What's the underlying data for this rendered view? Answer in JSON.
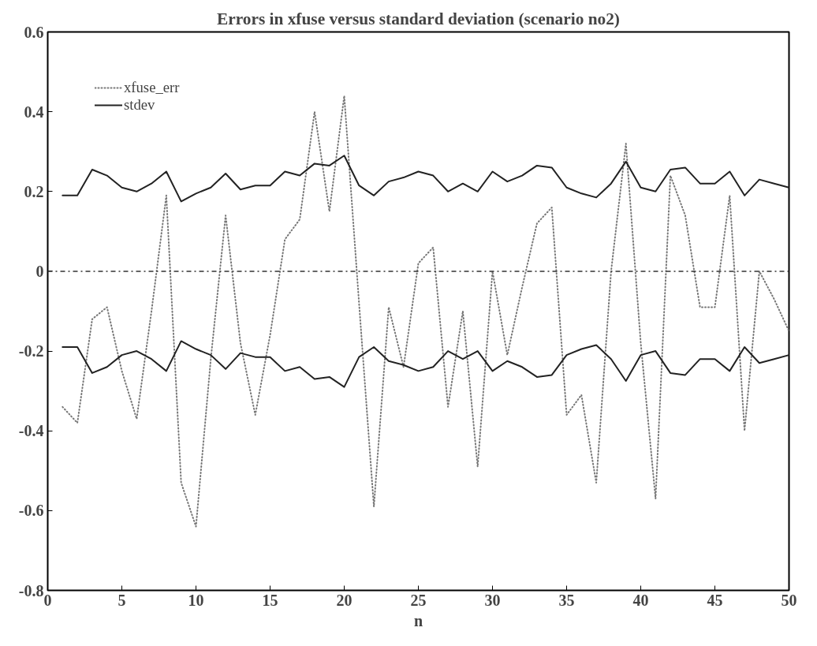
{
  "chart_data": {
    "type": "line",
    "title": "Errors in xfuse versus standard deviation (scenario no2)",
    "xlabel": "n",
    "x": [
      1,
      2,
      3,
      4,
      5,
      6,
      7,
      8,
      9,
      10,
      11,
      12,
      13,
      14,
      15,
      16,
      17,
      18,
      19,
      20,
      21,
      22,
      23,
      24,
      25,
      26,
      27,
      28,
      29,
      30,
      31,
      32,
      33,
      34,
      35,
      36,
      37,
      38,
      39,
      40,
      41,
      42,
      43,
      44,
      45,
      46,
      47,
      48,
      49,
      50
    ],
    "series": [
      {
        "name": "xfuse_err",
        "color": "#777777",
        "line_style": "dotted",
        "values": [
          -0.34,
          -0.38,
          -0.12,
          -0.09,
          -0.25,
          -0.37,
          -0.1,
          0.19,
          -0.53,
          -0.64,
          -0.22,
          0.14,
          -0.18,
          -0.36,
          -0.16,
          0.08,
          0.13,
          0.4,
          0.15,
          0.44,
          -0.08,
          -0.59,
          -0.09,
          -0.24,
          0.02,
          0.06,
          -0.34,
          -0.1,
          -0.49,
          0.0,
          -0.21,
          -0.04,
          0.12,
          0.16,
          -0.36,
          -0.31,
          -0.53,
          0.0,
          0.32,
          -0.18,
          -0.57,
          0.24,
          0.14,
          -0.09,
          -0.09,
          0.19,
          -0.4,
          0.0,
          -0.07,
          -0.15
        ]
      },
      {
        "name": "stdev",
        "color": "#222222",
        "line_style": "solid",
        "values": [
          0.19,
          0.19,
          0.255,
          0.24,
          0.21,
          0.2,
          0.22,
          0.25,
          0.175,
          0.195,
          0.21,
          0.245,
          0.205,
          0.215,
          0.215,
          0.25,
          0.24,
          0.27,
          0.265,
          0.29,
          0.215,
          0.19,
          0.225,
          0.235,
          0.25,
          0.24,
          0.2,
          0.22,
          0.2,
          0.25,
          0.225,
          0.24,
          0.265,
          0.26,
          0.21,
          0.195,
          0.185,
          0.22,
          0.275,
          0.21,
          0.2,
          0.255,
          0.26,
          0.22,
          0.22,
          0.25,
          0.19,
          0.23,
          0.22,
          0.21
        ]
      },
      {
        "color": "#222222",
        "line_style": "solid",
        "values": [
          -0.19,
          -0.19,
          -0.255,
          -0.24,
          -0.21,
          -0.2,
          -0.22,
          -0.25,
          -0.175,
          -0.195,
          -0.21,
          -0.245,
          -0.205,
          -0.215,
          -0.215,
          -0.25,
          -0.24,
          -0.27,
          -0.265,
          -0.29,
          -0.215,
          -0.19,
          -0.225,
          -0.235,
          -0.25,
          -0.24,
          -0.2,
          -0.22,
          -0.2,
          -0.25,
          -0.225,
          -0.24,
          -0.265,
          -0.26,
          -0.21,
          -0.195,
          -0.185,
          -0.22,
          -0.275,
          -0.21,
          -0.2,
          -0.255,
          -0.26,
          -0.22,
          -0.22,
          -0.25,
          -0.19,
          -0.23,
          -0.22,
          -0.21
        ]
      }
    ],
    "ref_lines": [
      {
        "axis": "y",
        "value": 0,
        "color": "#333333",
        "line_style": "dashdot"
      }
    ],
    "xlim": [
      0,
      50
    ],
    "xticks": [
      0,
      5,
      10,
      15,
      20,
      25,
      30,
      35,
      40,
      45,
      50
    ],
    "ylim": [
      -0.8,
      0.6
    ],
    "yticks": [
      {
        "value": 0.6,
        "label": "0.6"
      },
      {
        "value": 0.4,
        "label": "0.4"
      },
      {
        "value": 0.2,
        "label": "0.2"
      },
      0,
      {
        "value": -0.2,
        "label": "-0.2"
      },
      {
        "value": -0.4,
        "label": "-0.4"
      },
      {
        "value": -0.6,
        "label": "-0.6"
      },
      {
        "value": -0.8,
        "label": "-0.8"
      }
    ],
    "grid": false,
    "legend": "top left",
    "marker": "none"
  }
}
